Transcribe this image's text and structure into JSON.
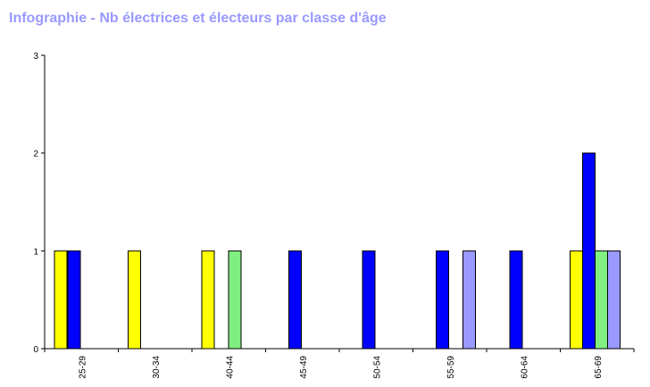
{
  "chart_data": {
    "type": "bar",
    "title": "Infographie - Nb électrices et électeurs par classe d'âge",
    "xlabel": "",
    "ylabel": "",
    "ylim": [
      0,
      3
    ],
    "yticks": [
      "0",
      "1",
      "2",
      "3"
    ],
    "grid": false,
    "legend": "none",
    "categories": [
      "25-29",
      "30-34",
      "40-44",
      "45-49",
      "50-54",
      "55-59",
      "60-64",
      "65-69"
    ],
    "series": [
      {
        "color": "#ffff00",
        "values": [
          1,
          1,
          1,
          0,
          0,
          0,
          0,
          1
        ]
      },
      {
        "color": "#0000ff",
        "values": [
          1,
          0,
          0,
          1,
          1,
          1,
          1,
          2
        ]
      },
      {
        "color": "#80ee80",
        "values": [
          0,
          0,
          1,
          0,
          0,
          0,
          0,
          1
        ]
      },
      {
        "color": "#9999ff",
        "values": [
          0,
          0,
          0,
          0,
          0,
          1,
          0,
          1
        ]
      }
    ]
  }
}
